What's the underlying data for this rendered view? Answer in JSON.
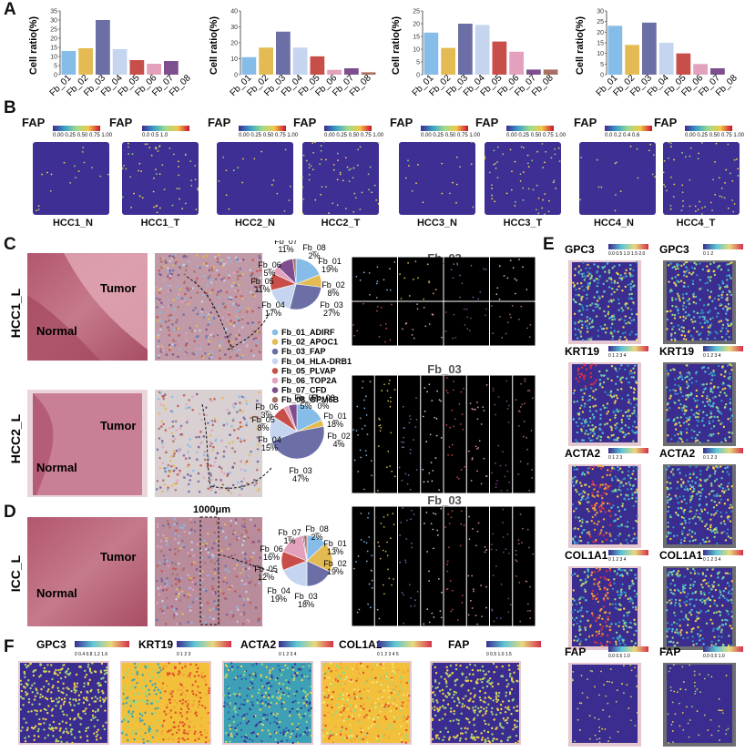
{
  "panels": {
    "A": "A",
    "B": "B",
    "C": "C",
    "D": "D",
    "E": "E",
    "F": "F"
  },
  "palette": {
    "fb_01": "#86bce8",
    "fb_02": "#e3bb52",
    "fb_03": "#6b6fa6",
    "fb_04": "#c5d5ef",
    "fb_05": "#c84f49",
    "fb_06": "#e3a1bd",
    "fb_07": "#7d4f8e",
    "fb_08": "#a87062",
    "navy": "#3b2d8f"
  },
  "chart_data": [
    {
      "type": "bar",
      "ylabel": "Cell ratio(%)",
      "categories": [
        "Fb_01",
        "Fb_02",
        "Fb_03",
        "Fb_04",
        "Fb_05",
        "Fb_06",
        "Fb_07",
        "Fb_08"
      ],
      "values": [
        13,
        14.5,
        30,
        14,
        8,
        6,
        7.5,
        0
      ],
      "ylim": [
        0,
        35
      ],
      "yticks": [
        0,
        5,
        10,
        15,
        20,
        25,
        30,
        35
      ]
    },
    {
      "type": "bar",
      "ylabel": "Cell ratio(%)",
      "categories": [
        "Fb_01",
        "Fb_02",
        "Fb_03",
        "Fb_04",
        "Fb_05",
        "Fb_06",
        "Fb_07",
        "Fb_08"
      ],
      "values": [
        11,
        17,
        27,
        17,
        11.5,
        3,
        4,
        1.5
      ],
      "ylim": [
        0,
        40
      ],
      "yticks": [
        0,
        10,
        20,
        30,
        40
      ]
    },
    {
      "type": "bar",
      "ylabel": "Cell ratio(%)",
      "categories": [
        "Fb_01",
        "Fb_02",
        "Fb_03",
        "Fb_04",
        "Fb_05",
        "Fb_06",
        "Fb_07",
        "Fb_08"
      ],
      "values": [
        16.5,
        10.5,
        20,
        19.5,
        13,
        9,
        2,
        2
      ],
      "ylim": [
        0,
        25
      ],
      "yticks": [
        0,
        5,
        10,
        15,
        20,
        25
      ]
    },
    {
      "type": "bar",
      "ylabel": "Cell ratio(%)",
      "categories": [
        "Fb_01",
        "Fb_02",
        "Fb_03",
        "Fb_04",
        "Fb_05",
        "Fb_06",
        "Fb_07",
        "Fb_08"
      ],
      "values": [
        23,
        14,
        24.5,
        15,
        10,
        5,
        3,
        0
      ],
      "ylim": [
        0,
        30
      ],
      "yticks": [
        0,
        5,
        10,
        15,
        20,
        25,
        30
      ]
    },
    {
      "type": "pie",
      "slices": [
        {
          "name": "Fb_01",
          "value": 19
        },
        {
          "name": "Fb_02",
          "value": 8
        },
        {
          "name": "Fb_03",
          "value": 27
        },
        {
          "name": "Fb_04",
          "value": 17
        },
        {
          "name": "Fb_05",
          "value": 11
        },
        {
          "name": "Fb_06",
          "value": 5
        },
        {
          "name": "Fb_07",
          "value": 11
        },
        {
          "name": "Fb_08",
          "value": 2
        }
      ]
    },
    {
      "type": "pie",
      "slices": [
        {
          "name": "Fb_01",
          "value": 18
        },
        {
          "name": "Fb_02",
          "value": 4
        },
        {
          "name": "Fb_03",
          "value": 47
        },
        {
          "name": "Fb_04",
          "value": 15
        },
        {
          "name": "Fb_05",
          "value": 8
        },
        {
          "name": "Fb_06",
          "value": 3
        },
        {
          "name": "Fb_07",
          "value": 5
        },
        {
          "name": "Fb_08",
          "value": 0
        }
      ]
    },
    {
      "type": "pie",
      "slices": [
        {
          "name": "Fb_01",
          "value": 13
        },
        {
          "name": "Fb_02",
          "value": 19
        },
        {
          "name": "Fb_03",
          "value": 18
        },
        {
          "name": "Fb_04",
          "value": 19
        },
        {
          "name": "Fb_05",
          "value": 12
        },
        {
          "name": "Fb_06",
          "value": 16
        },
        {
          "name": "Fb_07",
          "value": 1
        },
        {
          "name": "Fb_08",
          "value": 2
        }
      ]
    }
  ],
  "bars": {
    "ylabel": "Cell ratio(%)"
  },
  "b": {
    "fap": "FAP",
    "ticks_a": "0.00 0.25 0.50 0.75 1.00",
    "ticks_b": "0.0   0.5   1.0",
    "ticks_c": "0.0  0.2  0.4  0.6",
    "captions": [
      "HCC1_N",
      "HCC1_T",
      "HCC2_N",
      "HCC2_T",
      "HCC3_N",
      "HCC3_T",
      "HCC4_N",
      "HCC4_T"
    ]
  },
  "c": {
    "row1": "HCC1_L",
    "row2": "HCC2_L",
    "tumor": "Tumor",
    "normal": "Normal",
    "fb03": "Fb_03",
    "legend": [
      "Fb_01_ADIRF",
      "Fb_02_APOC1",
      "Fb_03_FAP",
      "Fb_04_HLA-DRB1",
      "Fb_05_PLVAP",
      "Fb_06_TOP2A",
      "Fb_07_CFD",
      "Fb_08_GPM6B"
    ],
    "pie1": [
      [
        "Fb_07",
        "11%"
      ],
      [
        "Fb_08",
        "2%"
      ],
      [
        "Fb_01",
        "19%"
      ],
      [
        "Fb_02",
        "8%"
      ],
      [
        "Fb_03",
        "27%"
      ],
      [
        "Fb_04",
        "17%"
      ],
      [
        "Fb_05",
        "11%"
      ],
      [
        "Fb_06",
        "5%"
      ]
    ],
    "pie2": [
      [
        "Fb_07",
        "5%"
      ],
      [
        "Fb_08",
        "0%"
      ],
      [
        "Fb_01",
        "18%"
      ],
      [
        "Fb_02",
        "4%"
      ],
      [
        "Fb_03",
        "47%"
      ],
      [
        "Fb_04",
        "15%"
      ],
      [
        "Fb_05",
        "8%"
      ],
      [
        "Fb_06",
        "3%"
      ]
    ]
  },
  "d": {
    "row": "ICC_L",
    "tumor": "Tumor",
    "normal": "Normal",
    "scale": "1000μm",
    "fb03": "Fb_03",
    "pie": [
      [
        "Fb_07",
        "1%"
      ],
      [
        "Fb_08",
        "2%"
      ],
      [
        "Fb_01",
        "13%"
      ],
      [
        "Fb_02",
        "19%"
      ],
      [
        "Fb_03",
        "18%"
      ],
      [
        "Fb_04",
        "19%"
      ],
      [
        "Fb_05",
        "12%"
      ],
      [
        "Fb_06",
        "16%"
      ]
    ]
  },
  "e": {
    "genes": [
      "GPC3",
      "GPC3",
      "KRT19",
      "KRT19",
      "ACTA2",
      "ACTA2",
      "COL1A1",
      "COL1A1",
      "FAP",
      "FAP"
    ],
    "ticks": [
      "0.0 0.5 1.0 1.5 2.0",
      "0    1    2",
      "0  1  2  3  4",
      "0  1  2  3  4",
      "0    1    2    3",
      "0  1  2  3",
      "0  1  2  3  4",
      "0  1  2  3  4",
      "0.0   0.5   1.0",
      "0.0  0.5  1.0"
    ]
  },
  "f": {
    "genes": [
      "GPC3",
      "KRT19",
      "ACTA2",
      "COL1A1",
      "FAP"
    ],
    "ticks": [
      "0  0.4  0.8  1.2  1.6",
      "0    1    2    3",
      "0   1   2   3   4",
      "0  1  2  3  4  5",
      "0   0.5   1.0   1.5"
    ]
  }
}
